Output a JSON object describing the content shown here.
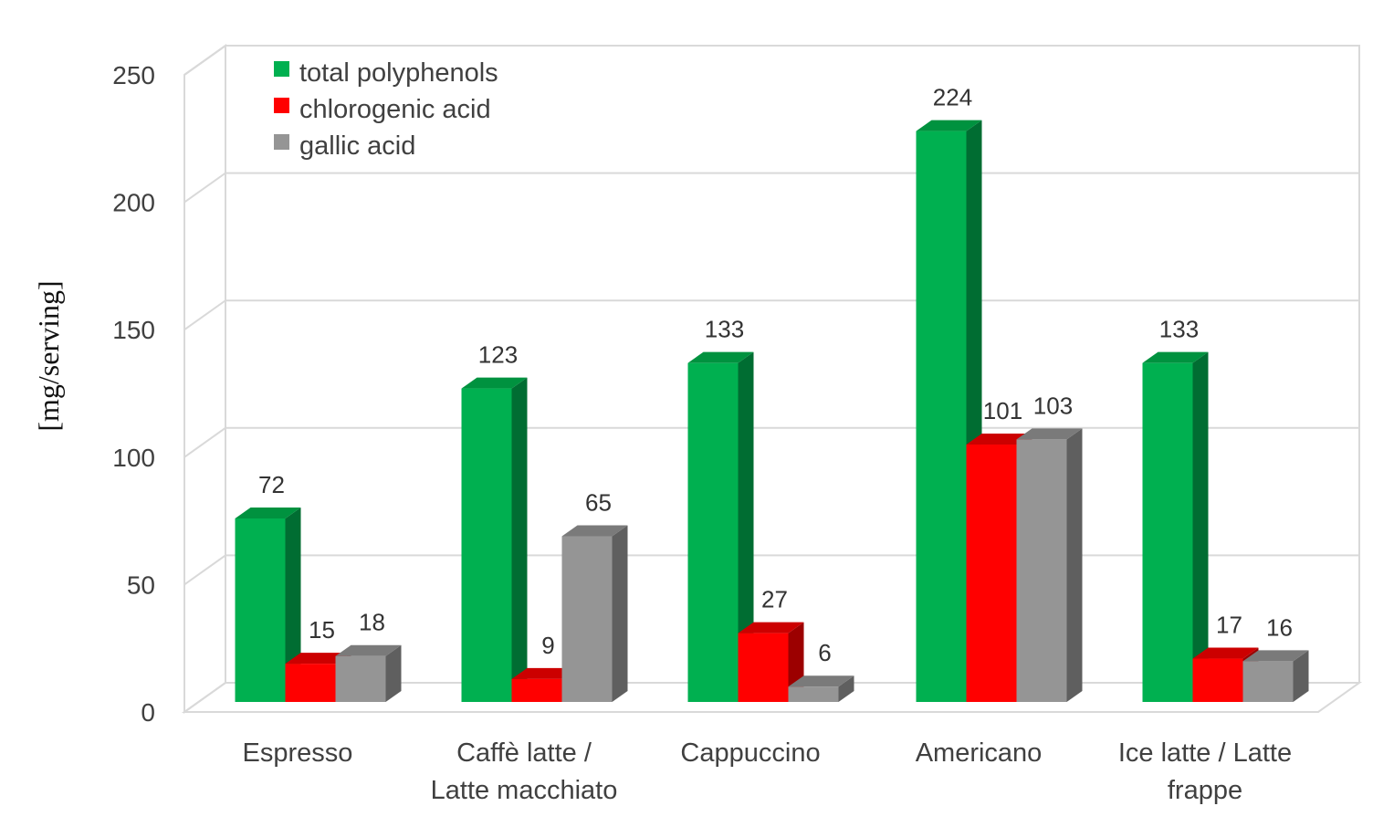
{
  "chart_data": {
    "type": "bar",
    "style": "3d-clustered",
    "ylabel": "[mg/serving]",
    "xlabel": "",
    "ylim": [
      0,
      250
    ],
    "yticks": [
      "0",
      "50",
      "100",
      "150",
      "200",
      "250"
    ],
    "grid": true,
    "legend_position": "top-left",
    "categories": [
      [
        "Espresso"
      ],
      [
        "Caffè latte /",
        "Latte macchiato"
      ],
      [
        "Cappuccino"
      ],
      [
        "Americano"
      ],
      [
        "Ice latte / Latte",
        "frappe"
      ]
    ],
    "series": [
      {
        "name": "total polyphenols",
        "values": [
          72,
          123,
          133,
          224,
          133
        ],
        "color": "#00b050",
        "side_color": "#006d32",
        "top_color": "#00923f"
      },
      {
        "name": "chlorogenic acid",
        "values": [
          15,
          9,
          27,
          101,
          17
        ],
        "color": "#ff0000",
        "side_color": "#9c0000",
        "top_color": "#cc0000"
      },
      {
        "name": "gallic acid",
        "values": [
          18,
          65,
          6,
          103,
          16
        ],
        "color": "#959595",
        "side_color": "#5f5f5f",
        "top_color": "#7a7a7a"
      }
    ]
  }
}
